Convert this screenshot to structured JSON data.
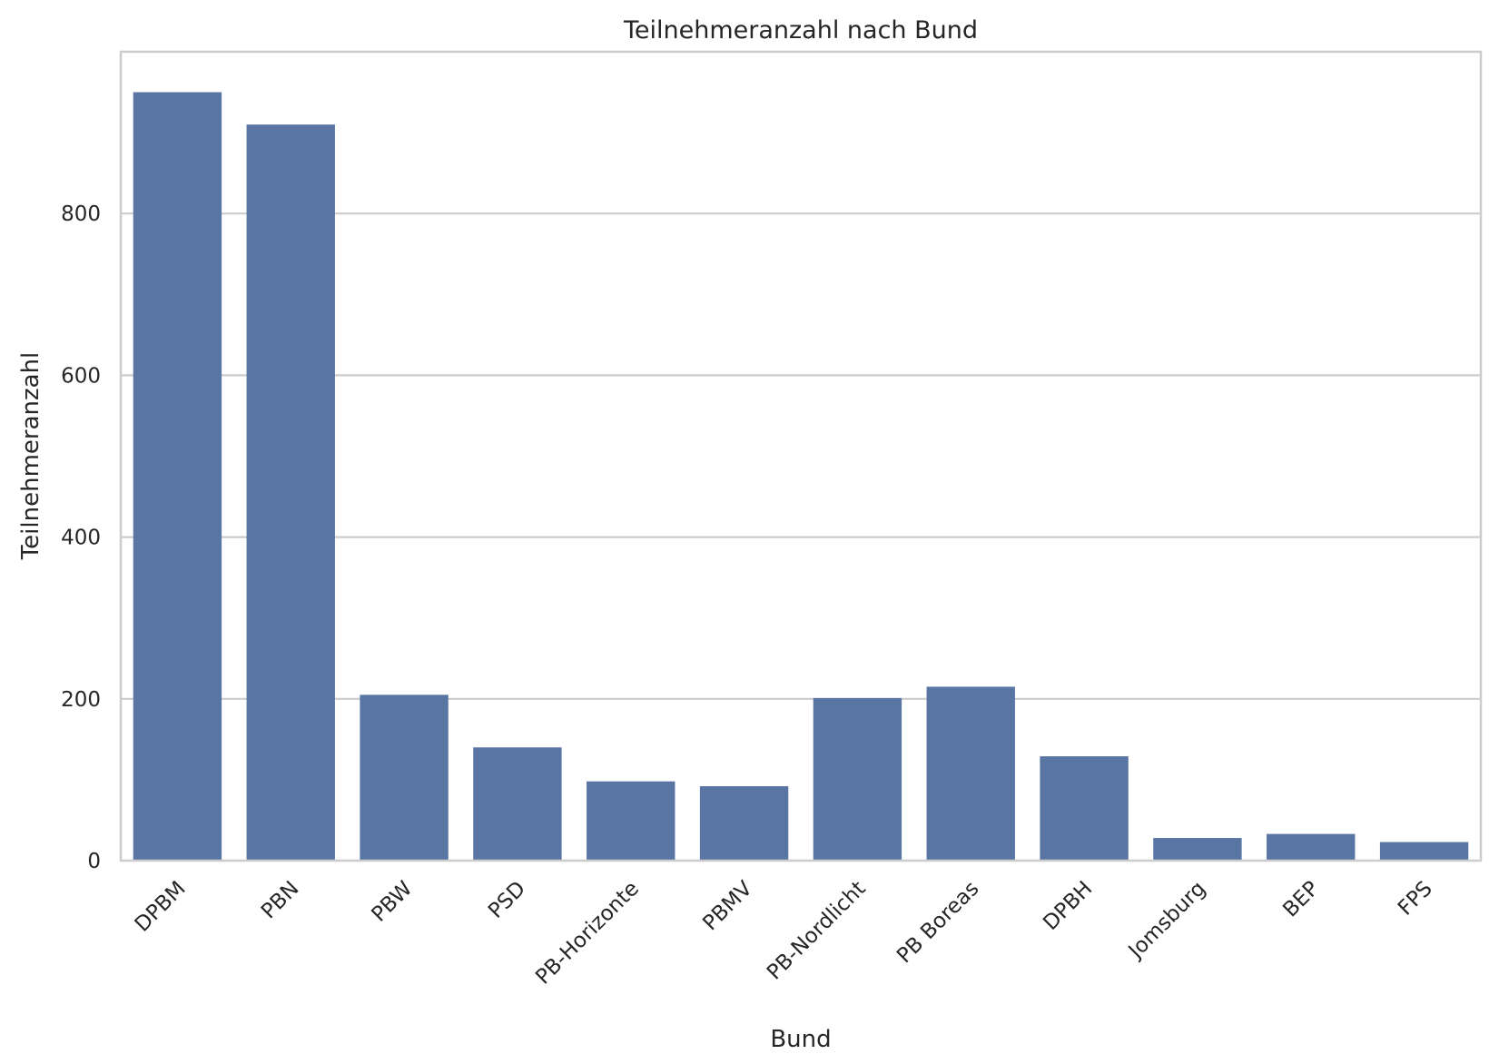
{
  "chart_data": {
    "type": "bar",
    "title": "Teilnehmeranzahl nach Bund",
    "xlabel": "Bund",
    "ylabel": "Teilnehmeranzahl",
    "categories": [
      "DPBM",
      "PBN",
      "PBW",
      "PSD",
      "PB-Horizonte",
      "PBMV",
      "PB-Nordlicht",
      "PB Boreas",
      "DPBH",
      "Jomsburg",
      "BEP",
      "FPS"
    ],
    "values": [
      950,
      910,
      205,
      140,
      98,
      92,
      201,
      215,
      129,
      28,
      33,
      23
    ],
    "ylim": [
      0,
      1000
    ],
    "yticks": [
      0,
      200,
      400,
      600,
      800
    ],
    "ytick_labels": [
      "0",
      "200",
      "400",
      "600",
      "800"
    ],
    "grid": "horizontal",
    "bar_color": "#5875a4"
  }
}
